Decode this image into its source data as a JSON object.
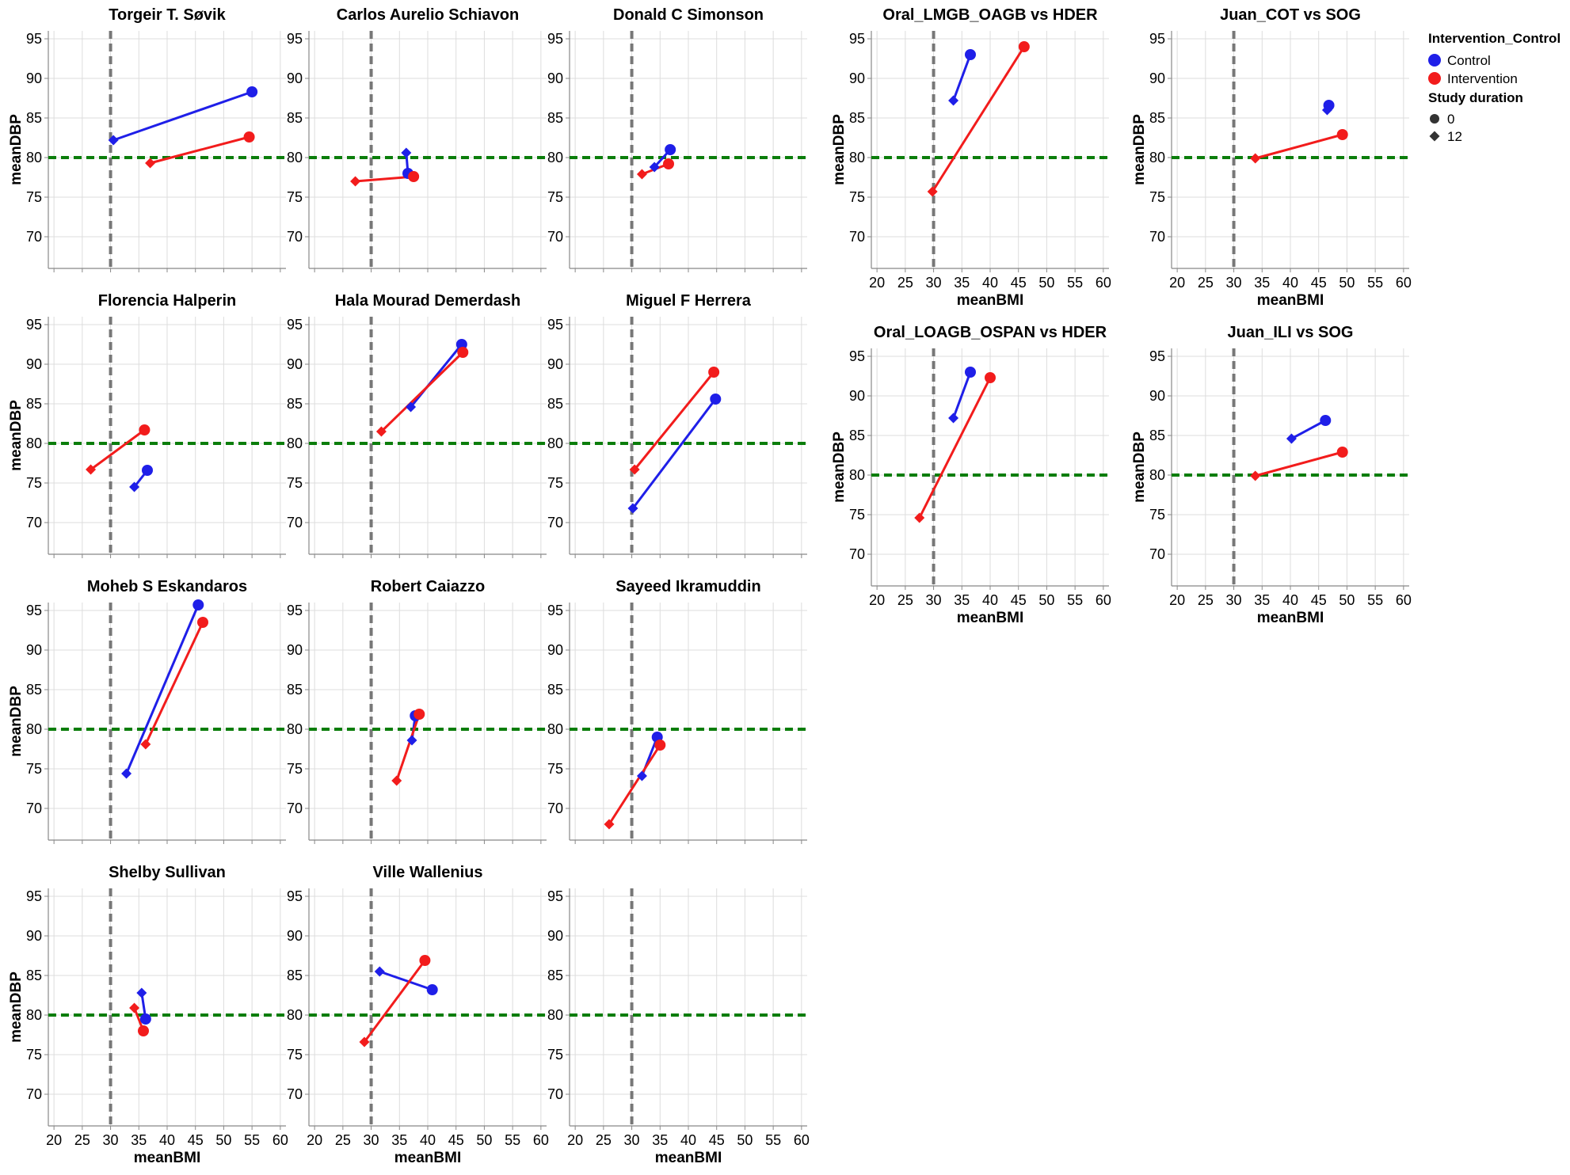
{
  "chart_data": {
    "type": "scatter",
    "x_label": "meanBMI",
    "y_label": "meanDBP",
    "x_ticks": [
      20,
      25,
      30,
      35,
      40,
      45,
      50,
      55,
      60
    ],
    "y_ticks": [
      70,
      75,
      80,
      85,
      90,
      95
    ],
    "xlim": [
      19,
      61
    ],
    "ylim": [
      66,
      96
    ],
    "reference_lines": {
      "vertical_x": 30,
      "vertical_color": "#777777",
      "horizontal_y": 80,
      "horizontal_color": "#0b7d0b"
    },
    "colors": {
      "Control": "#1f1fe8",
      "Intervention": "#f21c1c"
    },
    "grid": true,
    "legend": {
      "position": "top-right",
      "color_title": "Intervention_Control",
      "color_items": [
        "Control",
        "Intervention"
      ],
      "shape_title": "Study duration",
      "shape_items": [
        {
          "label": "0",
          "shape": "circle"
        },
        {
          "label": "12",
          "shape": "diamond"
        }
      ]
    },
    "panels": [
      {
        "title": "Torgeir T. Søvik",
        "series": [
          {
            "group": "Control",
            "points": [
              [
                55,
                88.3,
                0
              ],
              [
                30.5,
                82.2,
                12
              ]
            ]
          },
          {
            "group": "Intervention",
            "points": [
              [
                54.5,
                82.6,
                0
              ],
              [
                37,
                79.3,
                12
              ]
            ]
          }
        ]
      },
      {
        "title": "Carlos Aurelio Schiavon",
        "series": [
          {
            "group": "Control",
            "points": [
              [
                36.5,
                78,
                0
              ],
              [
                36.2,
                80.6,
                12
              ]
            ]
          },
          {
            "group": "Intervention",
            "points": [
              [
                37.5,
                77.6,
                0
              ],
              [
                27.2,
                77,
                12
              ]
            ]
          }
        ]
      },
      {
        "title": "Donald C Simonson",
        "series": [
          {
            "group": "Control",
            "points": [
              [
                36.8,
                81,
                0
              ],
              [
                34,
                78.8,
                12
              ]
            ]
          },
          {
            "group": "Intervention",
            "points": [
              [
                36.5,
                79.2,
                0
              ],
              [
                31.8,
                77.9,
                12
              ]
            ]
          }
        ]
      },
      {
        "title": "Oral_LMGB_OAGB vs HDER",
        "series": [
          {
            "group": "Control",
            "points": [
              [
                36.5,
                93,
                0
              ],
              [
                33.5,
                87.2,
                12
              ]
            ]
          },
          {
            "group": "Intervention",
            "points": [
              [
                46,
                94,
                0
              ],
              [
                29.8,
                75.7,
                12
              ]
            ]
          }
        ]
      },
      {
        "title": "Juan_COT vs SOG",
        "series": [
          {
            "group": "Control",
            "points": [
              [
                46.8,
                86.6,
                0
              ],
              [
                46.5,
                86,
                12
              ]
            ]
          },
          {
            "group": "Intervention",
            "points": [
              [
                49.2,
                82.9,
                0
              ],
              [
                33.8,
                79.9,
                12
              ]
            ]
          }
        ]
      },
      {
        "title": "Florencia Halperin",
        "series": [
          {
            "group": "Control",
            "points": [
              [
                36.5,
                76.6,
                0
              ],
              [
                34.2,
                74.5,
                12
              ]
            ]
          },
          {
            "group": "Intervention",
            "points": [
              [
                36,
                81.7,
                0
              ],
              [
                26.5,
                76.7,
                12
              ]
            ]
          }
        ]
      },
      {
        "title": "Hala Mourad Demerdash",
        "series": [
          {
            "group": "Control",
            "points": [
              [
                46,
                92.5,
                0
              ],
              [
                37,
                84.6,
                12
              ]
            ]
          },
          {
            "group": "Intervention",
            "points": [
              [
                46.2,
                91.5,
                0
              ],
              [
                31.8,
                81.5,
                12
              ]
            ]
          }
        ]
      },
      {
        "title": "Miguel F Herrera",
        "series": [
          {
            "group": "Control",
            "points": [
              [
                44.8,
                85.6,
                0
              ],
              [
                30.2,
                71.8,
                12
              ]
            ]
          },
          {
            "group": "Intervention",
            "points": [
              [
                44.5,
                89,
                0
              ],
              [
                30.5,
                76.7,
                12
              ]
            ]
          }
        ]
      },
      {
        "title": "Oral_LOAGB_OSPAN vs HDER",
        "series": [
          {
            "group": "Control",
            "points": [
              [
                36.5,
                93,
                0
              ],
              [
                33.5,
                87.2,
                12
              ]
            ]
          },
          {
            "group": "Intervention",
            "points": [
              [
                40,
                92.3,
                0
              ],
              [
                27.5,
                74.6,
                12
              ]
            ]
          }
        ]
      },
      {
        "title": "Juan_ILI vs SOG",
        "series": [
          {
            "group": "Control",
            "points": [
              [
                46.2,
                86.9,
                0
              ],
              [
                40.2,
                84.6,
                12
              ]
            ]
          },
          {
            "group": "Intervention",
            "points": [
              [
                49.2,
                82.9,
                0
              ],
              [
                33.8,
                79.9,
                12
              ]
            ]
          }
        ]
      },
      {
        "title": "Moheb S Eskandaros",
        "series": [
          {
            "group": "Control",
            "points": [
              [
                45.5,
                95.7,
                0
              ],
              [
                32.8,
                74.4,
                12
              ]
            ]
          },
          {
            "group": "Intervention",
            "points": [
              [
                46.3,
                93.5,
                0
              ],
              [
                36.2,
                78.1,
                12
              ]
            ]
          }
        ]
      },
      {
        "title": "Robert Caiazzo",
        "series": [
          {
            "group": "Control",
            "points": [
              [
                37.8,
                81.7,
                0
              ],
              [
                37.2,
                78.6,
                12
              ]
            ]
          },
          {
            "group": "Intervention",
            "points": [
              [
                38.5,
                81.9,
                0
              ],
              [
                34.5,
                73.5,
                12
              ]
            ]
          }
        ]
      },
      {
        "title": "Sayeed Ikramuddin",
        "series": [
          {
            "group": "Control",
            "points": [
              [
                34.5,
                79,
                0
              ],
              [
                31.8,
                74.1,
                12
              ]
            ]
          },
          {
            "group": "Intervention",
            "points": [
              [
                35,
                78,
                0
              ],
              [
                26,
                68,
                12
              ]
            ]
          }
        ]
      },
      {
        "title": "Shelby Sullivan",
        "series": [
          {
            "group": "Control",
            "points": [
              [
                36.2,
                79.5,
                0
              ],
              [
                35.5,
                82.8,
                12
              ]
            ]
          },
          {
            "group": "Intervention",
            "points": [
              [
                35.8,
                78,
                0
              ],
              [
                34.2,
                80.9,
                12
              ]
            ]
          }
        ]
      },
      {
        "title": "Ville Wallenius",
        "series": [
          {
            "group": "Control",
            "points": [
              [
                40.8,
                83.2,
                0
              ],
              [
                31.5,
                85.5,
                12
              ]
            ]
          },
          {
            "group": "Intervention",
            "points": [
              [
                39.5,
                86.9,
                0
              ],
              [
                28.8,
                76.6,
                12
              ]
            ]
          }
        ]
      },
      {
        "title": "",
        "series": []
      }
    ]
  }
}
